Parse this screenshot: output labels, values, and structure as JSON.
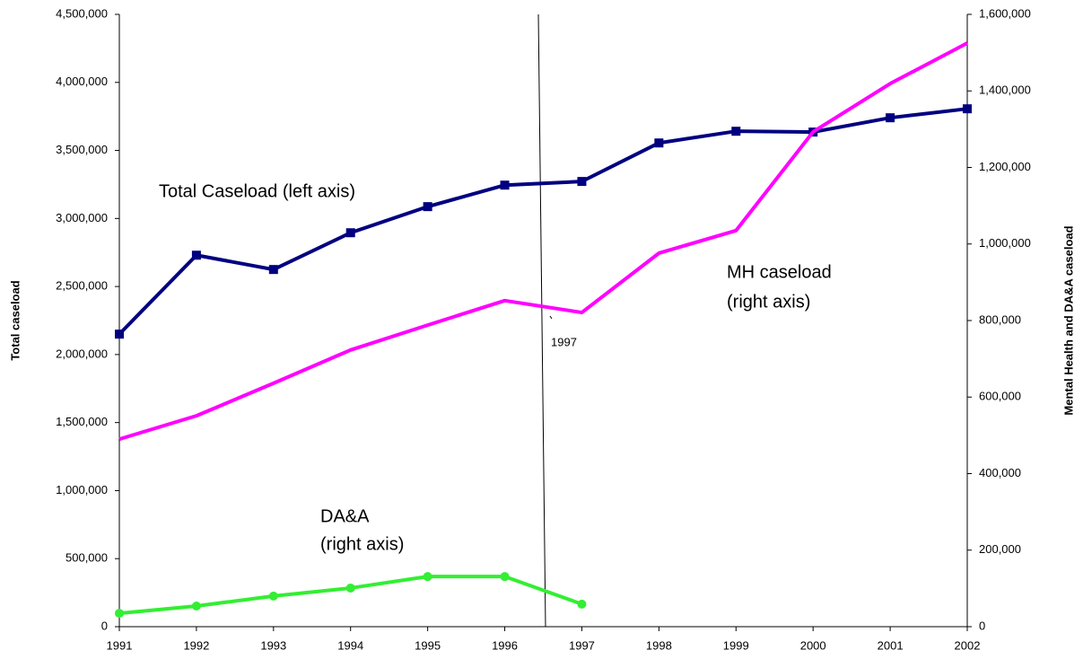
{
  "chart_data": {
    "type": "line",
    "y_axis_label": "Total caseload",
    "y2_axis_label": "Mental Health and DA&A caseload",
    "x": [
      1991,
      1992,
      1993,
      1994,
      1995,
      1996,
      1997,
      1998,
      1999,
      2000,
      2001,
      2002
    ],
    "xlim": [
      1991,
      2002
    ],
    "xticks": [
      1991,
      1992,
      1993,
      1994,
      1995,
      1996,
      1997,
      1998,
      1999,
      2000,
      2001,
      2002
    ],
    "ylim": [
      0,
      4500000
    ],
    "yticks": [
      0,
      {
        "value": 500000,
        "label": "500,000"
      },
      {
        "value": 1000000,
        "label": "1,000,000"
      },
      {
        "value": 1500000,
        "label": "1,500,000"
      },
      {
        "value": 2000000,
        "label": "2,000,000"
      },
      {
        "value": 2500000,
        "label": "2,500,000"
      },
      {
        "value": 3000000,
        "label": "3,000,000"
      },
      {
        "value": 3500000,
        "label": "3,500,000"
      },
      {
        "value": 4000000,
        "label": "4,000,000"
      },
      {
        "value": 4500000,
        "label": "4,500,000"
      }
    ],
    "y2lim": [
      0,
      1600000
    ],
    "y2ticks": [
      0,
      {
        "value": 200000,
        "label": "200,000"
      },
      {
        "value": 400000,
        "label": "400,000"
      },
      {
        "value": 600000,
        "label": "600,000"
      },
      {
        "value": 800000,
        "label": "800,000"
      },
      {
        "value": 1000000,
        "label": "1,000,000"
      },
      {
        "value": 1200000,
        "label": "1,200,000"
      },
      {
        "value": 1400000,
        "label": "1,400,000"
      },
      {
        "value": 1600000,
        "label": "1,600,000"
      }
    ],
    "series": [
      {
        "name": "Total Caseload",
        "color": "#000080",
        "marker": "square",
        "values": [
          2150000,
          2730000,
          2625000,
          2895000,
          3087000,
          3245000,
          3272000,
          3555000,
          3641000,
          3635000,
          3740000,
          3806000
        ]
      },
      {
        "name": "MH caseload",
        "color": "#ff00ff",
        "axis": "y2",
        "values": [
          490000,
          551000,
          636000,
          723000,
          788000,
          852000,
          821000,
          976000,
          1035000,
          1293000,
          1419000,
          1525000
        ]
      },
      {
        "name": "DA&A",
        "color": "#33ee33",
        "marker": "circle",
        "axis": "y2",
        "values": [
          35000,
          54000,
          80000,
          101000,
          131000,
          131000,
          59000,
          null,
          null,
          null,
          null,
          null
        ]
      }
    ],
    "annotations": [
      {
        "lines": [
          "Total Caseload (left axis)"
        ]
      },
      {
        "lines": [
          "MH caseload",
          "(right axis)"
        ]
      },
      {
        "lines": [
          "DA&A",
          "(right axis)"
        ]
      },
      {
        "lines": [
          "1997"
        ]
      }
    ]
  }
}
